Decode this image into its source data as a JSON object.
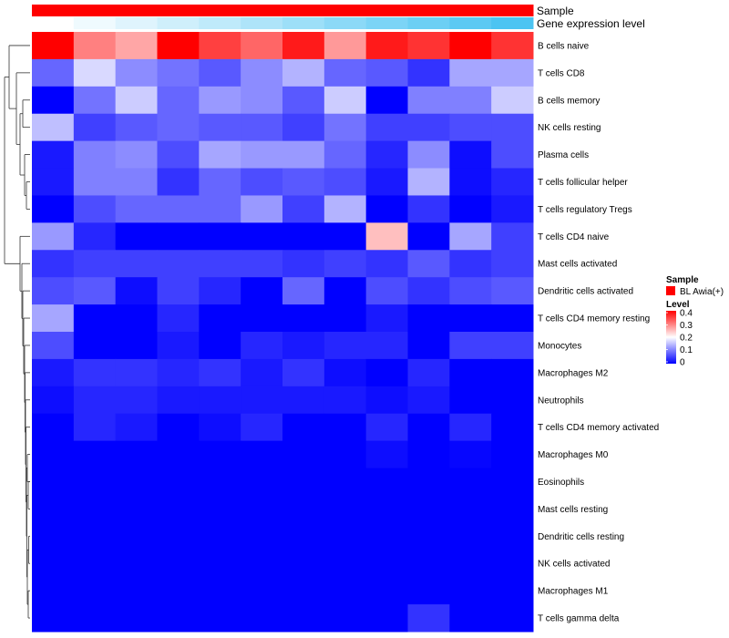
{
  "chart_data": {
    "type": "heatmap",
    "annotations": [
      {
        "name": "Sample"
      },
      {
        "name": "Gene expression level"
      }
    ],
    "rows": [
      {
        "label": "B cells naive",
        "values": [
          0.4,
          0.3,
          0.27,
          0.4,
          0.35,
          0.32,
          0.38,
          0.28,
          0.38,
          0.36,
          0.4,
          0.36
        ]
      },
      {
        "label": "T cells CD8",
        "values": [
          0.08,
          0.17,
          0.11,
          0.09,
          0.07,
          0.11,
          0.14,
          0.08,
          0.07,
          0.04,
          0.13,
          0.13
        ]
      },
      {
        "label": "B cells memory",
        "values": [
          0.0,
          0.09,
          0.16,
          0.08,
          0.12,
          0.11,
          0.07,
          0.16,
          0.0,
          0.1,
          0.1,
          0.16
        ]
      },
      {
        "label": "NK cells resting",
        "values": [
          0.15,
          0.05,
          0.07,
          0.08,
          0.07,
          0.07,
          0.05,
          0.09,
          0.05,
          0.05,
          0.06,
          0.06
        ]
      },
      {
        "label": "Plasma cells",
        "values": [
          0.02,
          0.1,
          0.11,
          0.06,
          0.13,
          0.12,
          0.12,
          0.08,
          0.03,
          0.11,
          0.01,
          0.06
        ]
      },
      {
        "label": "T cells follicular helper",
        "values": [
          0.02,
          0.1,
          0.1,
          0.04,
          0.08,
          0.06,
          0.07,
          0.06,
          0.02,
          0.14,
          0.01,
          0.03
        ]
      },
      {
        "label": "T cells regulatory  Tregs",
        "values": [
          0.0,
          0.06,
          0.08,
          0.08,
          0.08,
          0.12,
          0.05,
          0.14,
          0.0,
          0.04,
          0.0,
          0.02
        ]
      },
      {
        "label": "T cells CD4 naive",
        "values": [
          0.12,
          0.03,
          0.0,
          0.0,
          0.0,
          0.0,
          0.0,
          0.0,
          0.25,
          0.0,
          0.13,
          0.05
        ]
      },
      {
        "label": "Mast cells activated",
        "values": [
          0.04,
          0.05,
          0.05,
          0.05,
          0.05,
          0.05,
          0.04,
          0.05,
          0.04,
          0.07,
          0.04,
          0.05
        ]
      },
      {
        "label": "Dendritic cells activated",
        "values": [
          0.06,
          0.07,
          0.01,
          0.05,
          0.03,
          0.0,
          0.08,
          0.0,
          0.06,
          0.04,
          0.06,
          0.07
        ]
      },
      {
        "label": "T cells CD4 memory resting",
        "values": [
          0.13,
          0.0,
          0.0,
          0.03,
          0.0,
          0.0,
          0.0,
          0.0,
          0.02,
          0.0,
          0.0,
          0.0
        ]
      },
      {
        "label": "Monocytes",
        "values": [
          0.06,
          0.0,
          0.0,
          0.02,
          0.0,
          0.03,
          0.02,
          0.03,
          0.03,
          0.0,
          0.05,
          0.05
        ]
      },
      {
        "label": "Macrophages M2",
        "values": [
          0.02,
          0.04,
          0.04,
          0.03,
          0.04,
          0.02,
          0.04,
          0.01,
          0.0,
          0.03,
          0.0,
          0.0
        ]
      },
      {
        "label": "Neutrophils",
        "values": [
          0.01,
          0.03,
          0.03,
          0.02,
          0.02,
          0.02,
          0.02,
          0.02,
          0.01,
          0.02,
          0.0,
          0.0
        ]
      },
      {
        "label": "T cells CD4 memory activated",
        "values": [
          0.0,
          0.03,
          0.02,
          0.0,
          0.01,
          0.03,
          0.0,
          0.0,
          0.03,
          0.0,
          0.03,
          0.0
        ]
      },
      {
        "label": "Macrophages M0",
        "values": [
          0.0,
          0.0,
          0.0,
          0.0,
          0.0,
          0.0,
          0.0,
          0.0,
          0.01,
          0.0,
          0.005,
          0.0
        ]
      },
      {
        "label": "Eosinophils",
        "values": [
          0.0,
          0.0,
          0.0,
          0.0,
          0.0,
          0.0,
          0.0,
          0.0,
          0.0,
          0.0,
          0.0,
          0.0
        ]
      },
      {
        "label": "Mast cells resting",
        "values": [
          0.0,
          0.0,
          0.0,
          0.0,
          0.0,
          0.0,
          0.0,
          0.0,
          0.0,
          0.0,
          0.0,
          0.0
        ]
      },
      {
        "label": "Dendritic cells resting",
        "values": [
          0.0,
          0.0,
          0.0,
          0.0,
          0.0,
          0.0,
          0.0,
          0.0,
          0.0,
          0.0,
          0.0,
          0.0
        ]
      },
      {
        "label": "NK cells activated",
        "values": [
          0.0,
          0.0,
          0.0,
          0.0,
          0.0,
          0.0,
          0.0,
          0.0,
          0.0,
          0.0,
          0.0,
          0.0
        ]
      },
      {
        "label": "Macrophages M1",
        "values": [
          0.0,
          0.0,
          0.0,
          0.0,
          0.0,
          0.0,
          0.0,
          0.0,
          0.0,
          0.0,
          0.0,
          0.0
        ]
      },
      {
        "label": "T cells gamma delta",
        "values": [
          0.0,
          0.0,
          0.0,
          0.0,
          0.0,
          0.0,
          0.0,
          0.0,
          0.0,
          0.04,
          0.0,
          0.0
        ]
      }
    ],
    "gene_expression_level": [
      0.0,
      0.09,
      0.18,
      0.27,
      0.36,
      0.45,
      0.55,
      0.64,
      0.73,
      0.82,
      0.91,
      1.0
    ],
    "colors": {
      "low": "#0000FF",
      "mid": "#FFFFFF",
      "high": "#FF0000",
      "sample": "#FF0000",
      "gel_low": "#FFFFFF",
      "gel_high": "#4CC4F2"
    },
    "legend": {
      "position": "right",
      "sample_title": "Sample",
      "sample_item": "BL Awia(+)",
      "level_title": "Level",
      "level_ticks": [
        "0.4",
        "0.3",
        "0.2",
        "0.1",
        "0"
      ],
      "level_range": [
        0,
        0.4
      ]
    },
    "dendrogram": "rows"
  }
}
